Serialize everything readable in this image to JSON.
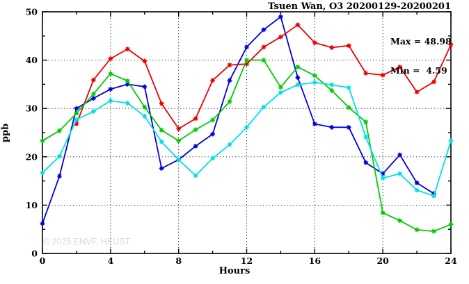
{
  "chart_data": {
    "type": "line",
    "title": "Tsuen Wan, O3 20200129-20200201",
    "annotation": {
      "max_label": "Max = 48.98",
      "min_label": "Min =  4.59"
    },
    "xlabel": "Hours",
    "ylabel": "ppb",
    "watermark": "© 2025 ENVF, HKUST",
    "xlim": [
      0,
      24
    ],
    "ylim": [
      0,
      50
    ],
    "x_major_ticks": [
      0,
      4,
      8,
      12,
      16,
      20,
      24
    ],
    "x_minor_ticks": [
      2,
      6,
      10,
      14,
      18,
      22
    ],
    "y_major_ticks": [
      0,
      10,
      20,
      30,
      40,
      50
    ],
    "y_minor_ticks": [
      5,
      15,
      25,
      35,
      45
    ],
    "x_gridlines": [
      4,
      8,
      12,
      16,
      20
    ],
    "y_gridlines": [
      10,
      20,
      30,
      40
    ],
    "grid": "dotted",
    "legend_position": "none",
    "axis_color": "#000000",
    "x": [
      0,
      1,
      2,
      3,
      4,
      5,
      6,
      7,
      8,
      9,
      10,
      11,
      12,
      13,
      14,
      15,
      16,
      17,
      18,
      19,
      20,
      21,
      22,
      23,
      24
    ],
    "series": [
      {
        "name": "series-blue",
        "color": "#0000dd",
        "values": [
          6.2,
          16.0,
          30.0,
          32.1,
          34.0,
          35.0,
          34.5,
          17.6,
          19.4,
          22.2,
          24.7,
          35.8,
          42.7,
          46.3,
          48.98,
          36.4,
          26.8,
          26.1,
          26.1,
          18.8,
          16.5,
          20.4,
          14.6,
          12.4,
          null
        ]
      },
      {
        "name": "series-red",
        "color": "#ee0000",
        "values": [
          null,
          null,
          26.8,
          35.9,
          40.3,
          42.3,
          39.8,
          31.0,
          25.8,
          27.9,
          35.8,
          39.0,
          39.2,
          42.7,
          44.8,
          47.3,
          43.6,
          42.6,
          43.0,
          37.3,
          36.9,
          38.6,
          33.4,
          35.5,
          43.2
        ]
      },
      {
        "name": "series-green",
        "color": "#00cc00",
        "values": [
          23.3,
          25.4,
          29.0,
          33.0,
          37.2,
          35.7,
          30.3,
          25.5,
          23.3,
          25.6,
          27.6,
          31.4,
          40.0,
          40.0,
          34.4,
          38.6,
          36.8,
          33.7,
          30.2,
          27.2,
          8.4,
          6.8,
          4.9,
          4.59,
          6.0
        ]
      },
      {
        "name": "series-cyan",
        "color": "#00e0e0",
        "values": [
          16.7,
          20.1,
          27.7,
          29.4,
          31.6,
          31.1,
          28.4,
          23.1,
          19.4,
          16.1,
          19.7,
          22.5,
          26.1,
          30.3,
          33.3,
          34.9,
          35.4,
          34.9,
          34.3,
          24.1,
          15.6,
          16.5,
          13.1,
          11.9,
          23.3
        ]
      }
    ]
  }
}
